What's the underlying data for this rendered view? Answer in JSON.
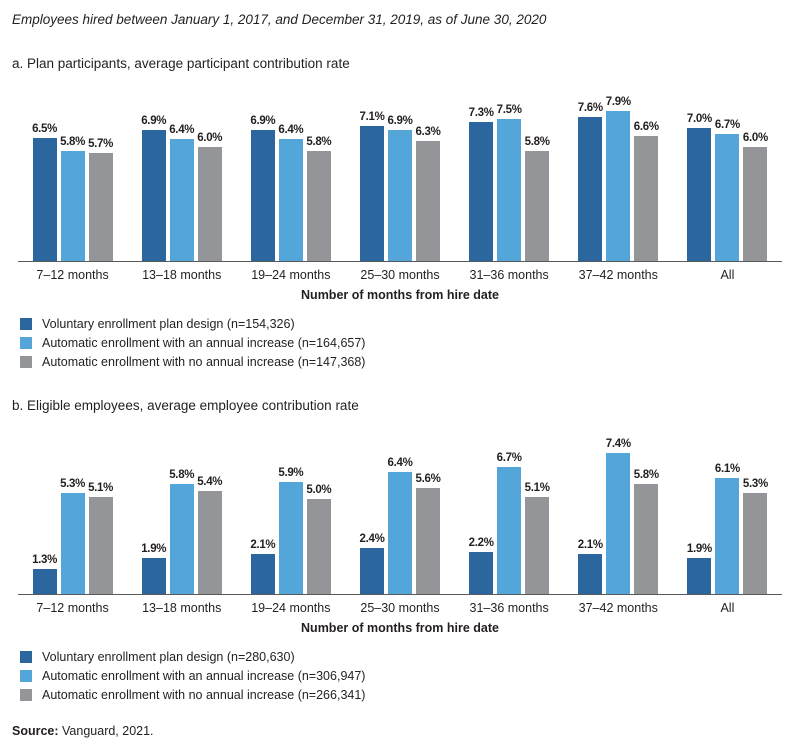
{
  "title": "Employees hired between January 1, 2017, and December 31, 2019, as of June 30, 2020",
  "source": {
    "label": "Source:",
    "text": " Vanguard, 2021."
  },
  "colors": {
    "dark_blue": "#2b669e",
    "light_blue": "#54a6da",
    "gray": "#939598",
    "axis": "#58595b"
  },
  "chart_data": [
    {
      "type": "bar",
      "section_label": "a. Plan participants, average participant contribution rate",
      "categories": [
        "7–12 months",
        "13–18 months",
        "19–24 months",
        "25–30 months",
        "31–36 months",
        "37–42 months",
        "All"
      ],
      "series": [
        {
          "name": "Voluntary enrollment plan design (n=154,326)",
          "color_key": "dark_blue",
          "values": [
            6.5,
            6.9,
            6.9,
            7.1,
            7.3,
            7.6,
            7.0
          ]
        },
        {
          "name": "Automatic enrollment with an annual increase (n=164,657)",
          "color_key": "light_blue",
          "values": [
            5.8,
            6.4,
            6.4,
            6.9,
            7.5,
            7.9,
            6.7
          ]
        },
        {
          "name": "Automatic enrollment with no annual increase  (n=147,368)",
          "color_key": "gray",
          "values": [
            5.7,
            6.0,
            5.8,
            6.3,
            5.8,
            6.6,
            6.0
          ]
        }
      ],
      "xlabel": "Number of months from hire date",
      "value_suffix": "%",
      "ylim": [
        0,
        8.5
      ],
      "legend_position": "bottom-left",
      "grid": false
    },
    {
      "type": "bar",
      "section_label": "b. Eligible employees, average employee contribution rate",
      "categories": [
        "7–12 months",
        "13–18 months",
        "19–24 months",
        "25–30 months",
        "31–36 months",
        "37–42 months",
        "All"
      ],
      "series": [
        {
          "name": "Voluntary enrollment plan design (n=280,630)",
          "color_key": "dark_blue",
          "values": [
            1.3,
            1.9,
            2.1,
            2.4,
            2.2,
            2.1,
            1.9
          ]
        },
        {
          "name": "Automatic enrollment with an annual increase (n=306,947)",
          "color_key": "light_blue",
          "values": [
            5.3,
            5.8,
            5.9,
            6.4,
            6.7,
            7.4,
            6.1
          ]
        },
        {
          "name": "Automatic enrollment with no annual increase (n=266,341)",
          "color_key": "gray",
          "values": [
            5.1,
            5.4,
            5.0,
            5.6,
            5.1,
            5.8,
            5.3
          ]
        }
      ],
      "xlabel": "Number of months from hire date",
      "value_suffix": "%",
      "ylim": [
        0,
        8
      ],
      "legend_position": "bottom-left",
      "grid": false
    }
  ]
}
